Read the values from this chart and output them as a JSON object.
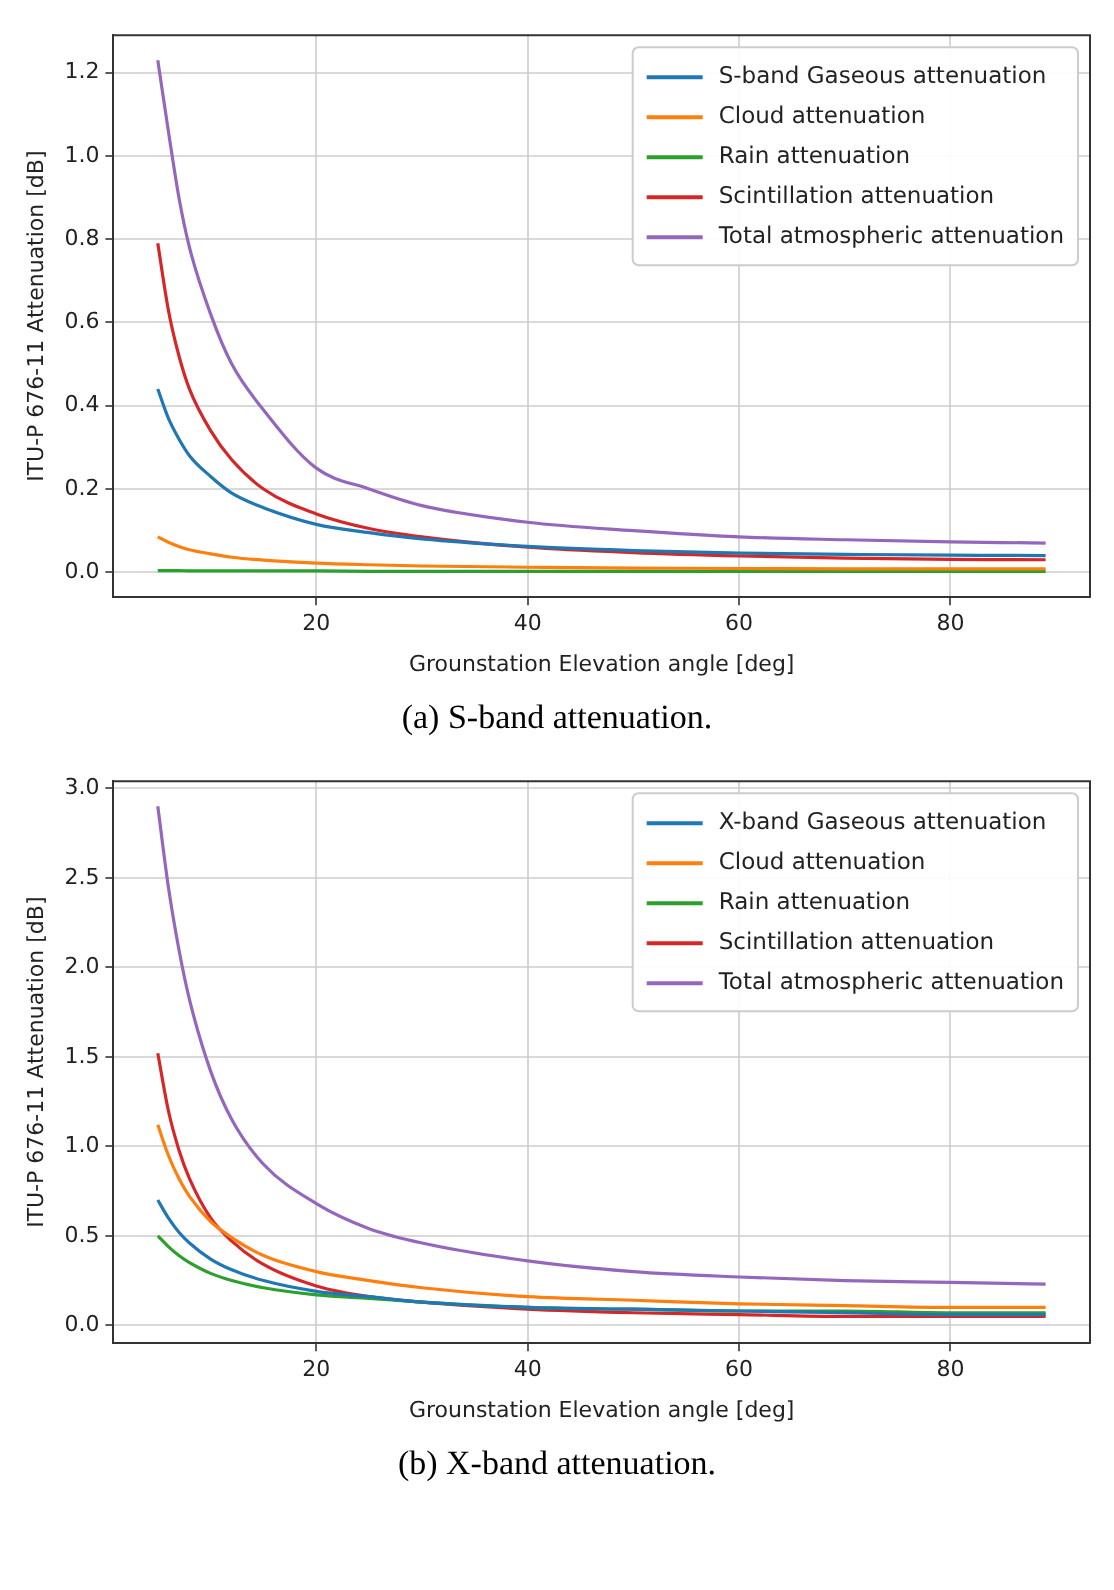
{
  "chart_data": [
    {
      "type": "line",
      "xlabel": "Grounstation Elevation angle [deg]",
      "ylabel": "ITU-P 676-11 Attenuation [dB]",
      "annotations": [
        "(a) S-band attenuation."
      ],
      "x": [
        5,
        6,
        7,
        8,
        10,
        12,
        15,
        20,
        25,
        30,
        40,
        50,
        60,
        70,
        80,
        89
      ],
      "xlim": [
        0.8,
        93.2
      ],
      "xticks": [
        20,
        40,
        60,
        80
      ],
      "ylim": [
        -0.06,
        1.29
      ],
      "yticks": [
        {
          "value": 0,
          "label": "0.0"
        },
        0.2,
        0.4,
        0.6,
        0.8,
        {
          "value": 1,
          "label": "1.0"
        },
        1.2
      ],
      "grid": true,
      "legend": "top right",
      "marker": "none",
      "line_style": "solid",
      "series": [
        {
          "name": "S-band Gaseous attenuation",
          "color": "#1f77b4",
          "values": [
            0.44,
            0.37,
            0.32,
            0.28,
            0.23,
            0.19,
            0.155,
            0.115,
            0.095,
            0.08,
            0.062,
            0.052,
            0.046,
            0.043,
            0.041,
            0.04
          ]
        },
        {
          "name": "Cloud attenuation",
          "color": "#ff7f0e",
          "values": [
            0.085,
            0.072,
            0.062,
            0.054,
            0.044,
            0.036,
            0.029,
            0.022,
            0.018,
            0.015,
            0.012,
            0.01,
            0.009,
            0.008,
            0.008,
            0.008
          ]
        },
        {
          "name": "Rain attenuation",
          "color": "#2ca02c",
          "values": [
            0.004,
            0.004,
            0.004,
            0.003,
            0.003,
            0.003,
            0.003,
            0.003,
            0.002,
            0.002,
            0.002,
            0.002,
            0.002,
            0.002,
            0.002,
            0.002
          ]
        },
        {
          "name": "Scintillation attenuation",
          "color": "#d62728",
          "values": [
            0.79,
            0.63,
            0.52,
            0.44,
            0.34,
            0.27,
            0.2,
            0.14,
            0.105,
            0.085,
            0.06,
            0.047,
            0.039,
            0.034,
            0.031,
            0.03
          ]
        },
        {
          "name": "Total atmospheric attenuation",
          "color": "#9467bd",
          "values": [
            1.23,
            1.06,
            0.9,
            0.78,
            0.62,
            0.5,
            0.39,
            0.25,
            0.2,
            0.16,
            0.12,
            0.1,
            0.085,
            0.078,
            0.073,
            0.07
          ]
        }
      ]
    },
    {
      "type": "line",
      "xlabel": "Grounstation Elevation angle [deg]",
      "ylabel": "ITU-P 676-11 Attenuation [dB]",
      "annotations": [
        "(b) X-band attenuation."
      ],
      "x": [
        5,
        6,
        7,
        8,
        10,
        12,
        15,
        20,
        25,
        30,
        40,
        50,
        60,
        70,
        80,
        89
      ],
      "xlim": [
        0.8,
        93.2
      ],
      "xticks": [
        20,
        40,
        60,
        80
      ],
      "ylim": [
        -0.1,
        3.04
      ],
      "yticks": [
        {
          "value": 0,
          "label": "0.0"
        },
        0.5,
        {
          "value": 1,
          "label": "1.0"
        },
        1.5,
        {
          "value": 2,
          "label": "2.0"
        },
        2.5,
        {
          "value": 3,
          "label": "3.0"
        }
      ],
      "grid": true,
      "legend": "top right",
      "marker": "none",
      "line_style": "solid",
      "series": [
        {
          "name": "X-band Gaseous attenuation",
          "color": "#1f77b4",
          "values": [
            0.7,
            0.6,
            0.52,
            0.46,
            0.37,
            0.31,
            0.25,
            0.19,
            0.16,
            0.13,
            0.1,
            0.09,
            0.08,
            0.07,
            0.06,
            0.06
          ]
        },
        {
          "name": "Cloud attenuation",
          "color": "#ff7f0e",
          "values": [
            1.12,
            0.95,
            0.82,
            0.72,
            0.58,
            0.49,
            0.39,
            0.3,
            0.25,
            0.21,
            0.16,
            0.14,
            0.12,
            0.11,
            0.1,
            0.1
          ]
        },
        {
          "name": "Rain attenuation",
          "color": "#2ca02c",
          "values": [
            0.5,
            0.44,
            0.39,
            0.35,
            0.29,
            0.25,
            0.21,
            0.17,
            0.15,
            0.13,
            0.1,
            0.09,
            0.08,
            0.08,
            0.07,
            0.07
          ]
        },
        {
          "name": "Scintillation attenuation",
          "color": "#d62728",
          "values": [
            1.52,
            1.2,
            0.98,
            0.82,
            0.6,
            0.47,
            0.34,
            0.22,
            0.16,
            0.13,
            0.09,
            0.07,
            0.06,
            0.05,
            0.05,
            0.05
          ]
        },
        {
          "name": "Total atmospheric attenuation",
          "color": "#9467bd",
          "values": [
            2.9,
            2.45,
            2.1,
            1.82,
            1.42,
            1.15,
            0.9,
            0.68,
            0.54,
            0.46,
            0.36,
            0.3,
            0.27,
            0.25,
            0.24,
            0.23
          ]
        }
      ]
    }
  ]
}
